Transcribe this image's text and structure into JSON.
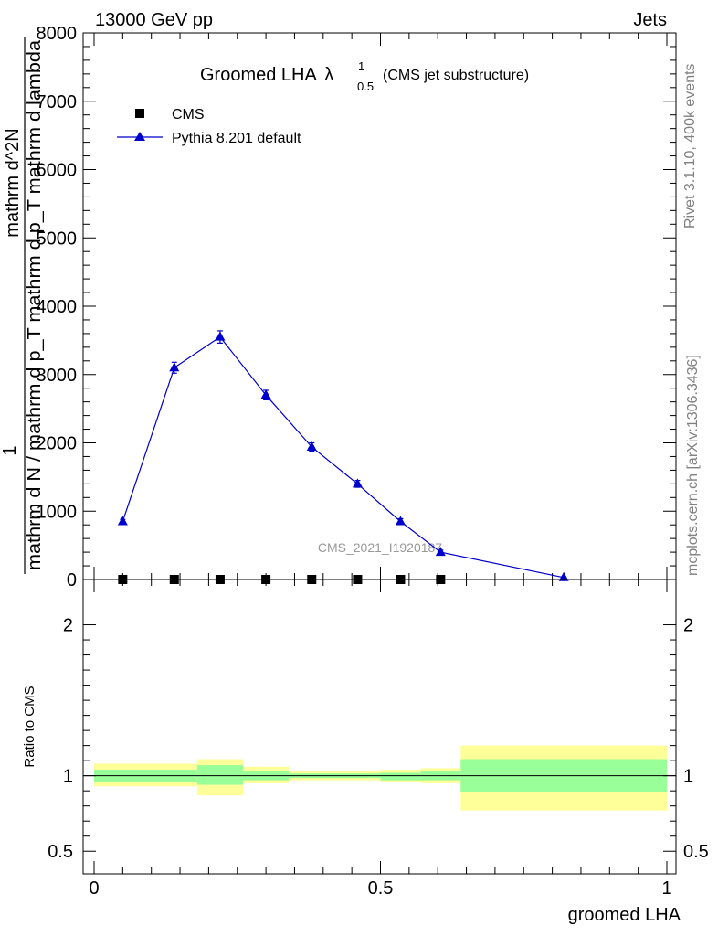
{
  "header": {
    "left": "13000 GeV pp",
    "right": "Jets"
  },
  "side_text": {
    "rivet": "Rivet 3.1.10,  400k events",
    "mcplots": "mcplots.cern.ch [arXiv:1306.3436]"
  },
  "watermark": "CMS_2021_I1920187",
  "chart_data": [
    {
      "type": "scatter",
      "title": "Groomed LHA",
      "title_symbol": "λ",
      "title_sup": "1",
      "title_sub": "0.5",
      "title_suffix": "(CMS jet substructure)",
      "ylabel_numerator": "1",
      "ylabel_denominator": "mathrm d N / mathrm d p_T mathrm d p_T mathrm d lambda",
      "ylabel_numerator_full": "mathrm d^2N",
      "xlim": [
        0,
        1
      ],
      "ylim": [
        0,
        8000
      ],
      "yticks": [
        0,
        1000,
        2000,
        3000,
        4000,
        5000,
        6000,
        7000,
        8000
      ],
      "ytick_labels": [
        "0",
        "1000",
        "2000",
        "3000",
        "4000",
        "5000",
        "6000",
        "7000",
        "8000"
      ],
      "legend_position": "top-left",
      "series": [
        {
          "name": "CMS",
          "marker": "square",
          "color": "#000000",
          "x": [
            0.05,
            0.14,
            0.22,
            0.3,
            0.38,
            0.46,
            0.535,
            0.605
          ],
          "y": [
            0,
            0,
            0,
            0,
            0,
            0,
            0,
            0
          ]
        },
        {
          "name": "Pythia 8.201 default",
          "marker": "triangle",
          "color": "#0000cc",
          "x": [
            0.05,
            0.14,
            0.22,
            0.3,
            0.38,
            0.46,
            0.535,
            0.605,
            0.82
          ],
          "y": [
            850,
            3100,
            3550,
            2700,
            1940,
            1400,
            850,
            400,
            30
          ],
          "yerr": [
            30,
            80,
            90,
            70,
            60,
            50,
            40,
            30,
            10
          ]
        }
      ]
    },
    {
      "type": "area",
      "ylabel": "Ratio to CMS",
      "xlabel": "groomed LHA",
      "xlim": [
        0,
        1
      ],
      "ylim": [
        0.35,
        2.3
      ],
      "yticks": [
        0.5,
        1,
        2
      ],
      "ytick_labels": [
        "0.5",
        "1",
        "2"
      ],
      "xticks": [
        0,
        0.5,
        1
      ],
      "xtick_labels": [
        "0",
        "0.5",
        "1"
      ],
      "reference_line": 1,
      "bands": [
        {
          "x0": 0.0,
          "x1": 0.18,
          "inner": [
            0.96,
            1.04
          ],
          "outer": [
            0.93,
            1.08
          ]
        },
        {
          "x0": 0.18,
          "x1": 0.26,
          "inner": [
            0.94,
            1.07
          ],
          "outer": [
            0.87,
            1.11
          ]
        },
        {
          "x0": 0.26,
          "x1": 0.34,
          "inner": [
            0.97,
            1.03
          ],
          "outer": [
            0.95,
            1.06
          ]
        },
        {
          "x0": 0.34,
          "x1": 0.5,
          "inner": [
            0.985,
            1.015
          ],
          "outer": [
            0.97,
            1.03
          ]
        },
        {
          "x0": 0.5,
          "x1": 0.57,
          "inner": [
            0.97,
            1.02
          ],
          "outer": [
            0.96,
            1.04
          ]
        },
        {
          "x0": 0.57,
          "x1": 0.64,
          "inner": [
            0.97,
            1.03
          ],
          "outer": [
            0.95,
            1.05
          ]
        },
        {
          "x0": 0.64,
          "x1": 1.0,
          "inner": [
            0.89,
            1.11
          ],
          "outer": [
            0.77,
            1.2
          ]
        }
      ],
      "colors": {
        "inner": "#99ff99",
        "outer": "#ffff99"
      }
    }
  ]
}
